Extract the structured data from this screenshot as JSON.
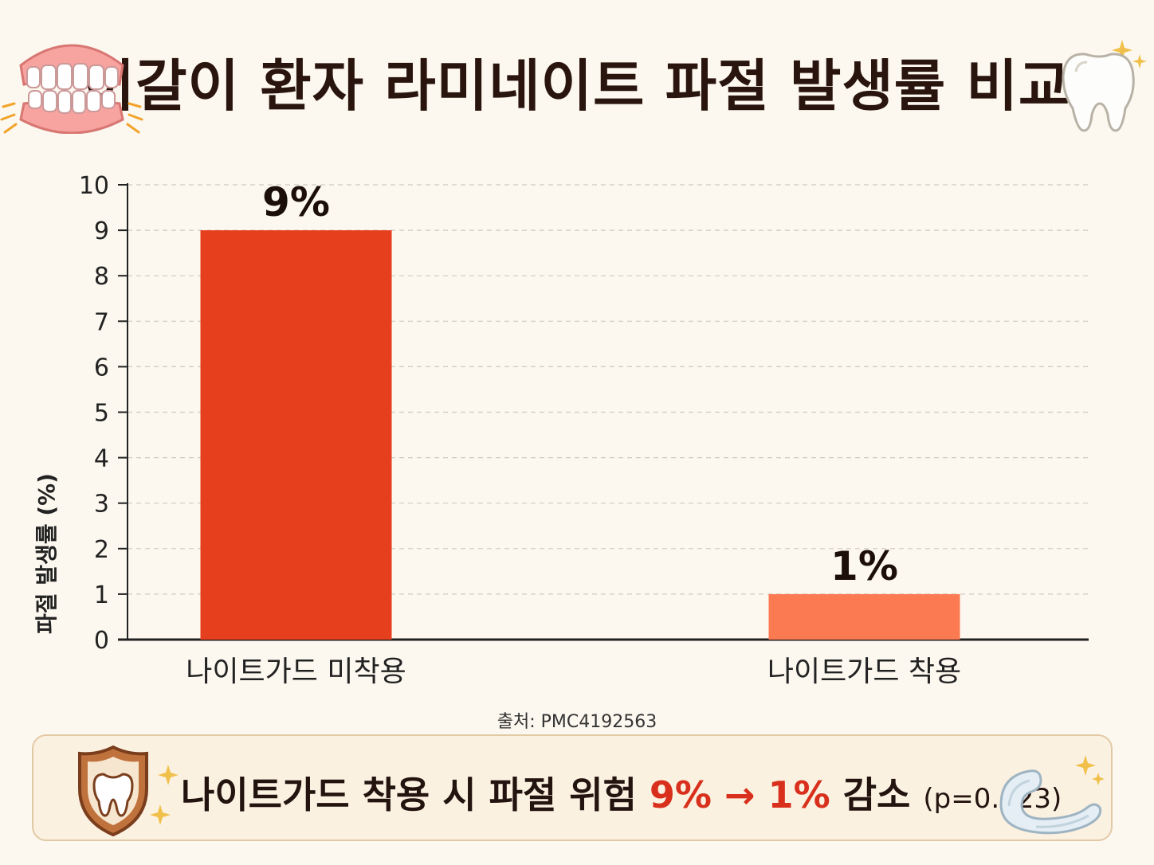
{
  "header": {
    "title": "이갈이 환자 라미네이트 파절 발생률 비교",
    "left_icon": "teeth-icon",
    "right_icon": "tooth-icon"
  },
  "chart_data": {
    "type": "bar",
    "categories": [
      "나이트가드 미착용",
      "나이트가드 착용"
    ],
    "values": [
      9,
      1
    ],
    "data_labels": [
      "9%",
      "1%"
    ],
    "colors": [
      "#e63f1e",
      "#fb7a52"
    ],
    "title": "이갈이 환자 라미네이트 파절 발생률 비교",
    "xlabel": "",
    "ylabel": "파절 발생률 (%)",
    "ylim": [
      0,
      10
    ],
    "yticks": [
      0,
      1,
      2,
      3,
      4,
      5,
      6,
      7,
      8,
      9,
      10
    ],
    "grid": true,
    "legend": "none"
  },
  "source": "출처: PMC4192563",
  "summary": {
    "prefix": "나이트가드 착용 시 파절 위험 ",
    "from_value": "9%",
    "arrow": " → ",
    "to_value": "1%",
    "suffix": " 감소 ",
    "p_value": "(p=0.023)",
    "left_icon": "shield-tooth-icon",
    "right_icon": "night-guard-icon"
  }
}
